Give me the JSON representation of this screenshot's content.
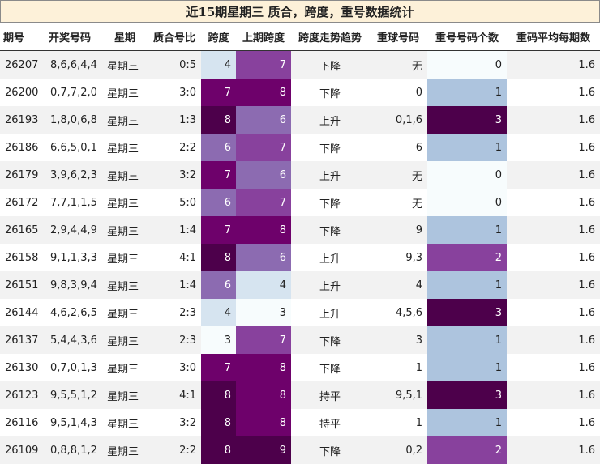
{
  "title": "近15期星期三 质合，跨度，重号数据统计",
  "columns": [
    "期号",
    "开奖号码",
    "星期",
    "质合号比",
    "跨度",
    "上期跨度",
    "跨度走势趋势",
    "重球号码",
    "重号号码个数",
    "重码平均每期数"
  ],
  "colors": {
    "title_bg": "#fdf1d9",
    "heat_scale": [
      "#f7fcfd",
      "#d6e4f0",
      "#adc4de",
      "#8c96c6",
      "#8c6bb1",
      "#88419d",
      "#6e016b",
      "#4d004b"
    ]
  },
  "chart_data": {
    "type": "table",
    "title": "近15期星期三 质合，跨度，重号数据统计",
    "columns": [
      "期号",
      "开奖号码",
      "星期",
      "质合号比",
      "跨度",
      "上期跨度",
      "跨度走势趋势",
      "重球号码",
      "重号号码个数",
      "重码平均每期数"
    ],
    "rows": [
      [
        "26207",
        "8,6,6,4,4",
        "星期三",
        "0:5",
        4,
        7,
        "下降",
        "无",
        0,
        1.6
      ],
      [
        "26200",
        "0,7,7,2,0",
        "星期三",
        "3:0",
        7,
        8,
        "下降",
        "0",
        1,
        1.6
      ],
      [
        "26193",
        "1,8,0,6,8",
        "星期三",
        "1:3",
        8,
        6,
        "上升",
        "0,1,6",
        3,
        1.6
      ],
      [
        "26186",
        "6,6,5,0,1",
        "星期三",
        "2:2",
        6,
        7,
        "下降",
        "6",
        1,
        1.6
      ],
      [
        "26179",
        "3,9,6,2,3",
        "星期三",
        "3:2",
        7,
        6,
        "上升",
        "无",
        0,
        1.6
      ],
      [
        "26172",
        "7,7,1,1,5",
        "星期三",
        "5:0",
        6,
        7,
        "下降",
        "无",
        0,
        1.6
      ],
      [
        "26165",
        "2,9,4,4,9",
        "星期三",
        "1:4",
        7,
        8,
        "下降",
        "9",
        1,
        1.6
      ],
      [
        "26158",
        "9,1,1,3,3",
        "星期三",
        "4:1",
        8,
        6,
        "上升",
        "9,3",
        2,
        1.6
      ],
      [
        "26151",
        "9,8,3,9,4",
        "星期三",
        "1:4",
        6,
        4,
        "上升",
        "4",
        1,
        1.6
      ],
      [
        "26144",
        "4,6,2,6,5",
        "星期三",
        "2:3",
        4,
        3,
        "上升",
        "4,5,6",
        3,
        1.6
      ],
      [
        "26137",
        "5,4,4,3,6",
        "星期三",
        "2:3",
        3,
        7,
        "下降",
        "3",
        1,
        1.6
      ],
      [
        "26130",
        "0,7,0,1,3",
        "星期三",
        "3:0",
        7,
        8,
        "下降",
        "1",
        1,
        1.6
      ],
      [
        "26123",
        "9,5,5,1,2",
        "星期三",
        "4:1",
        8,
        8,
        "持平",
        "9,5,1",
        3,
        1.6
      ],
      [
        "26116",
        "9,5,1,4,3",
        "星期三",
        "3:2",
        8,
        8,
        "持平",
        "1",
        1,
        1.6
      ],
      [
        "26109",
        "0,8,8,1,2",
        "星期三",
        "2:2",
        8,
        9,
        "下降",
        "0,2",
        2,
        1.6
      ]
    ],
    "heatmap_columns": {
      "跨度": {
        "range": [
          3,
          8
        ]
      },
      "上期跨度": {
        "range": [
          3,
          9
        ]
      },
      "重号号码个数": {
        "range": [
          0,
          3
        ]
      }
    }
  }
}
